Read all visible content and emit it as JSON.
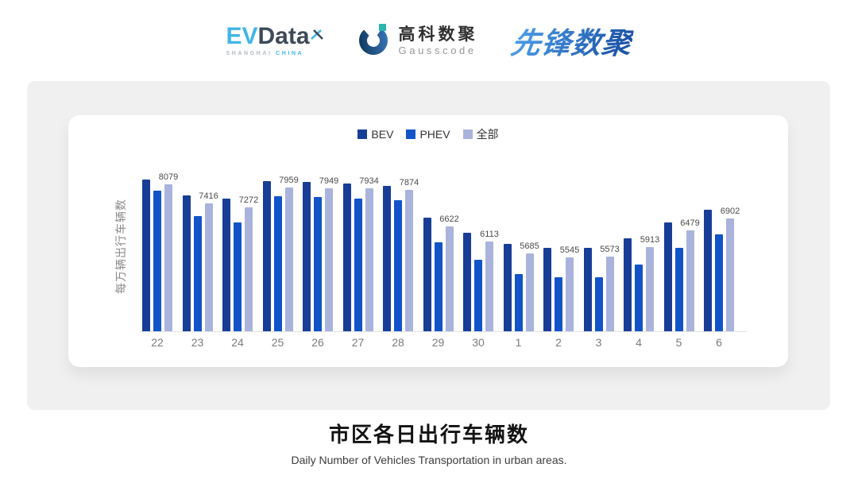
{
  "brand_header": {
    "evdata": {
      "ev": "EV",
      "data": "Data",
      "sub_left": "SHANGHAI",
      "sub_right": "CHINA"
    },
    "gausscode": {
      "cn": "高科数聚",
      "en": "Gausscode"
    },
    "pioneer": {
      "text": "先锋数聚"
    }
  },
  "chart_data": {
    "type": "bar",
    "title": "市区各日出行车辆数",
    "subtitle": "Daily Number of Vehicles Transportation in urban areas.",
    "ylabel": "每万辆出行车辆数",
    "xlabel": "",
    "categories": [
      "22",
      "23",
      "24",
      "25",
      "26",
      "27",
      "28",
      "29",
      "30",
      "1",
      "2",
      "3",
      "4",
      "5",
      "6"
    ],
    "series": [
      {
        "name": "BEV",
        "color": "#173d96",
        "values": [
          8245,
          7695,
          7575,
          8180,
          8170,
          8100,
          8035,
          6935,
          6410,
          6020,
          5880,
          5890,
          6200,
          6750,
          7190
        ]
      },
      {
        "name": "PHEV",
        "color": "#1254c8",
        "values": [
          7870,
          6980,
          6770,
          7670,
          7640,
          7595,
          7530,
          6065,
          5475,
          4990,
          4870,
          4875,
          5310,
          5890,
          6340
        ]
      },
      {
        "name": "全部",
        "color": "#a9b3dc",
        "values": [
          8079,
          7416,
          7272,
          7959,
          7949,
          7934,
          7874,
          6622,
          6113,
          5685,
          5545,
          5573,
          5913,
          6479,
          6902
        ]
      }
    ],
    "data_labels": [
      8079,
      7416,
      7272,
      7959,
      7949,
      7934,
      7874,
      6622,
      6113,
      5685,
      5545,
      5573,
      5913,
      6479,
      6902
    ],
    "ylim": [
      3000,
      8600
    ],
    "grid": false,
    "legend_position": "top"
  }
}
